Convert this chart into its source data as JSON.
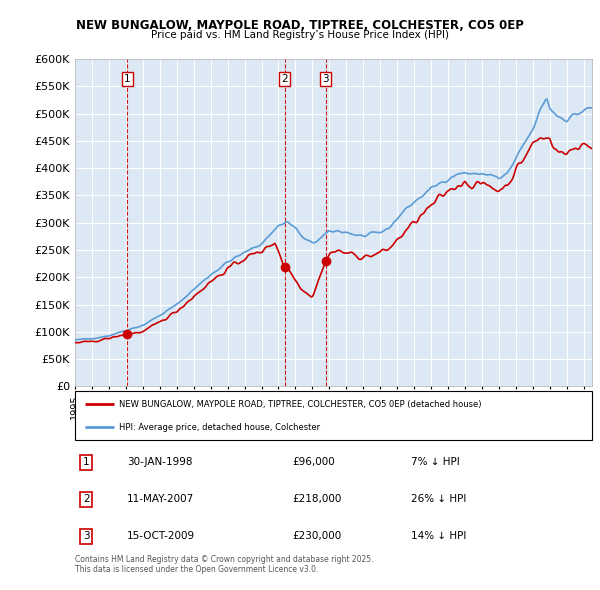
{
  "title": "NEW BUNGALOW, MAYPOLE ROAD, TIPTREE, COLCHESTER, CO5 0EP",
  "subtitle": "Price paid vs. HM Land Registry’s House Price Index (HPI)",
  "ylim": [
    0,
    600000
  ],
  "yticks": [
    0,
    50000,
    100000,
    150000,
    200000,
    250000,
    300000,
    350000,
    400000,
    450000,
    500000,
    550000,
    600000
  ],
  "plot_bg_color": "#dce9f5",
  "grid_color": "#ffffff",
  "hpi_color": "#5b9bd5",
  "hpi_fill_color": "#dce9f5",
  "price_color": "#cc0000",
  "vline_color": "#cc0000",
  "sale_points": [
    {
      "date_num": 1998.08,
      "price": 96000,
      "label": "1"
    },
    {
      "date_num": 2007.36,
      "price": 218000,
      "label": "2"
    },
    {
      "date_num": 2009.79,
      "price": 230000,
      "label": "3"
    }
  ],
  "legend_price_label": "NEW BUNGALOW, MAYPOLE ROAD, TIPTREE, COLCHESTER, CO5 0EP (detached house)",
  "legend_hpi_label": "HPI: Average price, detached house, Colchester",
  "footnote": "Contains HM Land Registry data © Crown copyright and database right 2025.\nThis data is licensed under the Open Government Licence v3.0.",
  "table_rows": [
    {
      "num": "1",
      "date": "30-JAN-1998",
      "price": "£96,000",
      "pct": "7% ↓ HPI"
    },
    {
      "num": "2",
      "date": "11-MAY-2007",
      "price": "£218,000",
      "pct": "26% ↓ HPI"
    },
    {
      "num": "3",
      "date": "15-OCT-2009",
      "price": "£230,000",
      "pct": "14% ↓ HPI"
    }
  ]
}
